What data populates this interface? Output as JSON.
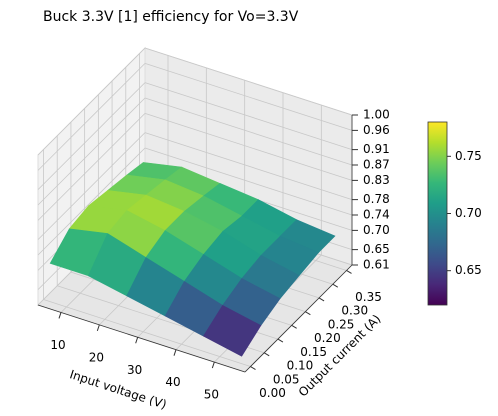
{
  "chart_data": {
    "type": "surface3d",
    "title": "Buck 3.3V [1] efficiency for Vo=3.3V",
    "x_label": "Input voltage (V)",
    "y_label": "Output current (A)",
    "x": [
      5,
      15,
      25,
      35,
      45,
      55
    ],
    "y": [
      0.01,
      0.08,
      0.15,
      0.22,
      0.29,
      0.35
    ],
    "z": [
      [
        0.7,
        0.7,
        0.68,
        0.66,
        0.64,
        0.62
      ],
      [
        0.74,
        0.76,
        0.73,
        0.7,
        0.67,
        0.65
      ],
      [
        0.75,
        0.77,
        0.75,
        0.72,
        0.69,
        0.67
      ],
      [
        0.74,
        0.76,
        0.75,
        0.73,
        0.7,
        0.68
      ],
      [
        0.73,
        0.75,
        0.74,
        0.72,
        0.7,
        0.69
      ],
      [
        0.72,
        0.74,
        0.73,
        0.72,
        0.7,
        0.69
      ]
    ],
    "xlim": [
      4,
      58
    ],
    "ylim": [
      -0.02,
      0.37
    ],
    "zlim": [
      0.61,
      1.0
    ],
    "xticks": [
      10,
      20,
      30,
      40,
      50
    ],
    "yticks": [
      {
        "value": 0,
        "label": "0.00"
      },
      0.05,
      {
        "value": 0.1,
        "label": "0.10"
      },
      0.15,
      {
        "value": 0.2,
        "label": "0.20"
      },
      0.25,
      {
        "value": 0.3,
        "label": "0.30"
      },
      0.35
    ],
    "zticks": [
      0.61,
      0.65,
      {
        "value": 0.7,
        "label": "0.70"
      },
      0.74,
      0.78,
      0.83,
      0.87,
      0.91,
      0.96,
      {
        "value": 1.0,
        "label": "1.00"
      }
    ],
    "colormap": "viridis",
    "clim": [
      0.62,
      0.78
    ],
    "colorbar_ticks": [
      0.65,
      {
        "value": 0.7,
        "label": "0.70"
      },
      0.75
    ],
    "grid": true
  }
}
